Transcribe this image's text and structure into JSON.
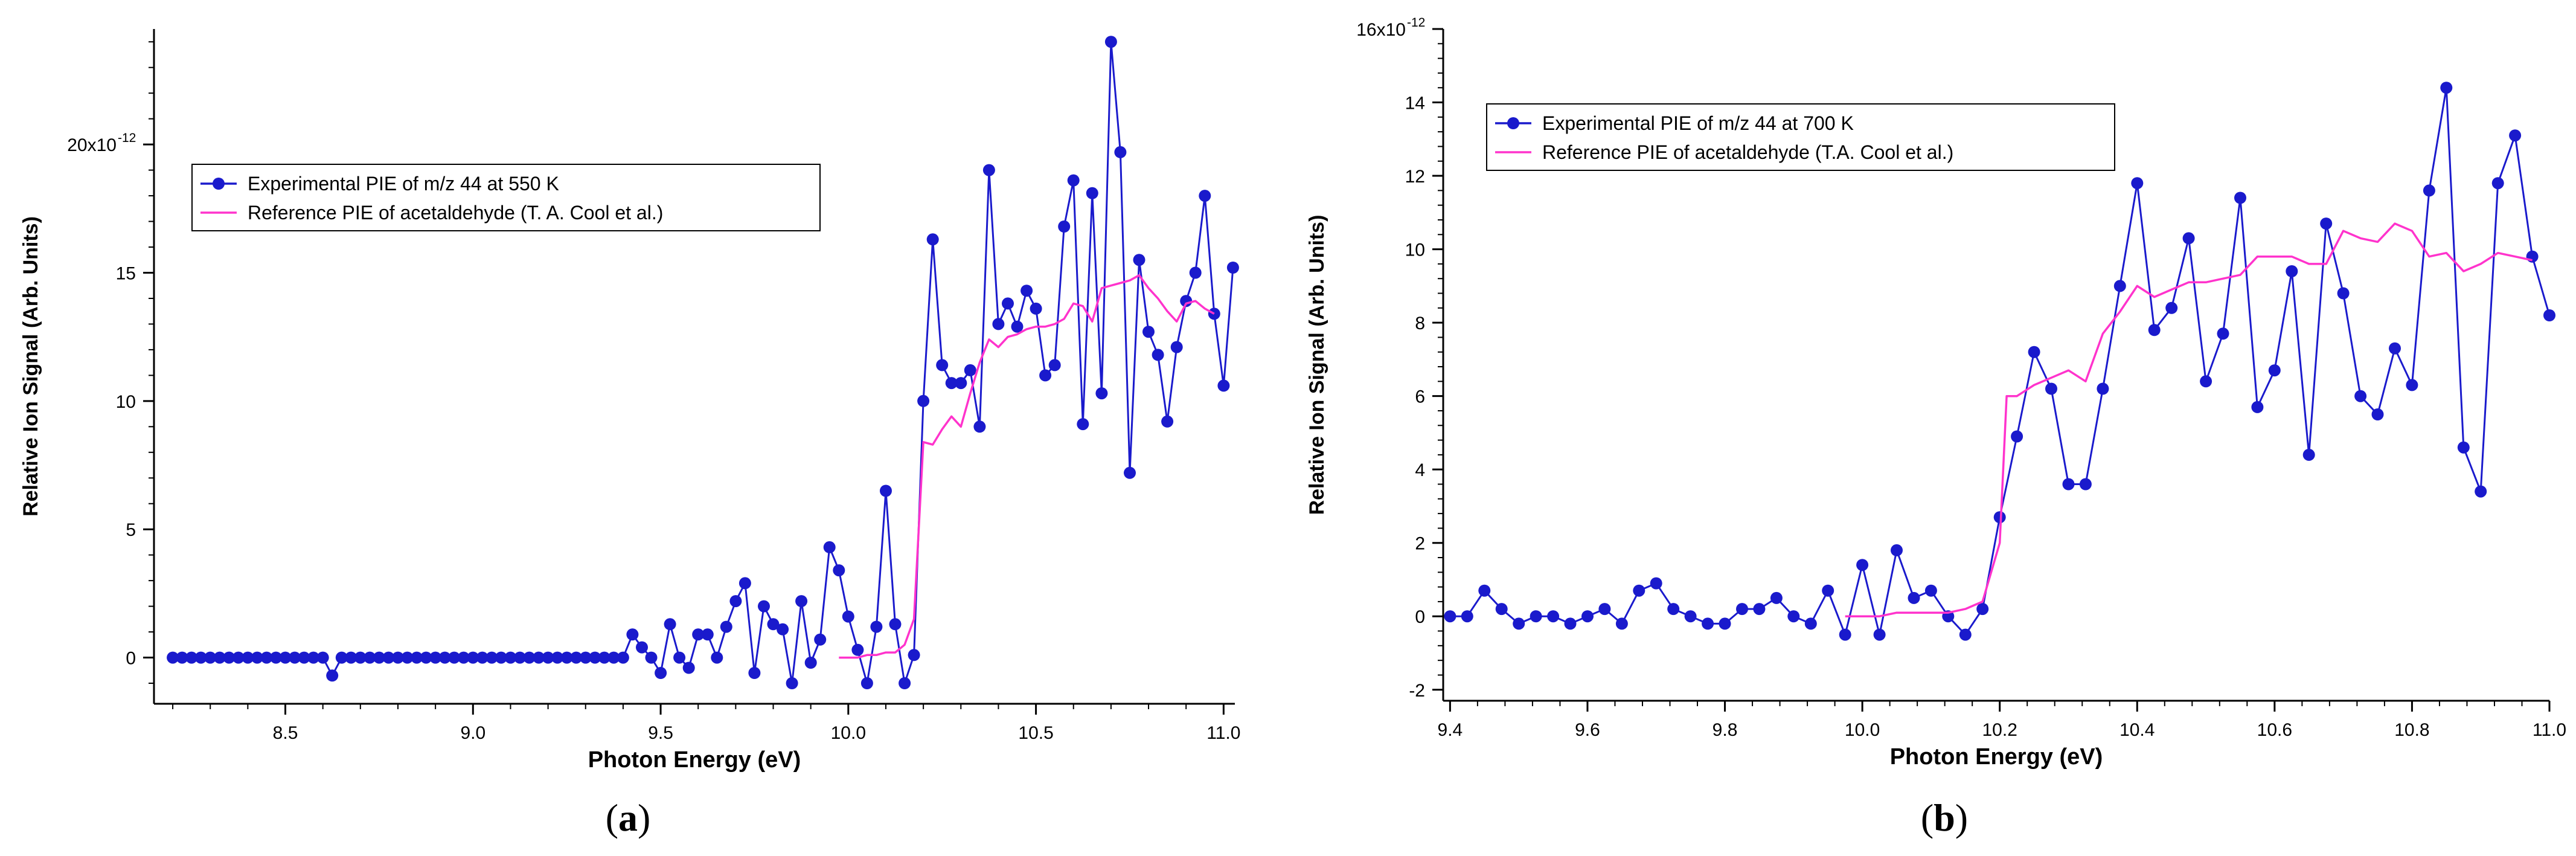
{
  "chart_data": [
    {
      "type": "line",
      "panel_label_prefix": "(",
      "panel_label_letter": "a",
      "panel_label_suffix": ")",
      "title": "",
      "xlabel": "Photon Energy (eV)",
      "ylabel": "Relative Ion Signal (Arb. Units)",
      "xlim": [
        8.15,
        11.03
      ],
      "ylim": [
        -1.8,
        24.5
      ],
      "x_ticks": [
        8.5,
        9.0,
        9.5,
        10.0,
        10.5,
        11.0
      ],
      "x_tick_labels": [
        "8.5",
        "9.0",
        "9.5",
        "10.0",
        "10.5",
        "11.0"
      ],
      "y_ticks": [
        0,
        5,
        10,
        15,
        20
      ],
      "y_tick_labels": [
        "0",
        "5",
        "10",
        "15",
        "20x10"
      ],
      "y_exponent": "-12",
      "legend_position": "top-left",
      "series": [
        {
          "name": "Experimental PIE of m/z 44 at 550 K",
          "color": "#1a1acc",
          "marker": "circle",
          "x": [
            8.2,
            8.225,
            8.25,
            8.275,
            8.3,
            8.325,
            8.35,
            8.375,
            8.4,
            8.425,
            8.45,
            8.475,
            8.5,
            8.525,
            8.55,
            8.575,
            8.6,
            8.625,
            8.65,
            8.675,
            8.7,
            8.725,
            8.75,
            8.775,
            8.8,
            8.825,
            8.85,
            8.875,
            8.9,
            8.925,
            8.95,
            8.975,
            9.0,
            9.025,
            9.05,
            9.075,
            9.1,
            9.125,
            9.15,
            9.175,
            9.2,
            9.225,
            9.25,
            9.275,
            9.3,
            9.325,
            9.35,
            9.375,
            9.4,
            9.425,
            9.45,
            9.475,
            9.5,
            9.525,
            9.55,
            9.575,
            9.6,
            9.625,
            9.65,
            9.675,
            9.7,
            9.725,
            9.75,
            9.775,
            9.8,
            9.825,
            9.85,
            9.875,
            9.9,
            9.925,
            9.95,
            9.975,
            10.0,
            10.025,
            10.05,
            10.075,
            10.1,
            10.125,
            10.15,
            10.175,
            10.2,
            10.225,
            10.25,
            10.275,
            10.3,
            10.325,
            10.35,
            10.375,
            10.4,
            10.425,
            10.45,
            10.475,
            10.5,
            10.525,
            10.55,
            10.575,
            10.6,
            10.625,
            10.65,
            10.675,
            10.7,
            10.725,
            10.75,
            10.775,
            10.8,
            10.825,
            10.85,
            10.875,
            10.9,
            10.925,
            10.95,
            10.975,
            11.0,
            11.025
          ],
          "y": [
            0,
            0,
            0,
            0,
            0,
            0,
            0,
            0,
            0,
            0,
            0,
            0,
            0,
            0,
            0,
            0,
            0,
            -0.7,
            0,
            0,
            0,
            0,
            0,
            0,
            0,
            0,
            0,
            0,
            0,
            0,
            0,
            0,
            0,
            0,
            0,
            0,
            0,
            0,
            0,
            0,
            0,
            0,
            0,
            0,
            0,
            0,
            0,
            0,
            0,
            0.9,
            0.4,
            0,
            -0.6,
            1.3,
            0,
            -0.4,
            0.9,
            0.9,
            0,
            1.2,
            2.2,
            2.9,
            -0.6,
            2.0,
            1.3,
            1.1,
            -1.0,
            2.2,
            -0.2,
            0.7,
            4.3,
            3.4,
            1.6,
            0.3,
            -1.0,
            1.2,
            6.5,
            1.3,
            -1.0,
            0.1,
            10.0,
            16.3,
            11.4,
            10.7,
            10.7,
            11.2,
            9.0,
            19.0,
            13.0,
            13.8,
            12.9,
            14.3,
            13.6,
            11.0,
            11.4,
            16.8,
            18.6,
            9.1,
            18.1,
            10.3,
            24.0,
            19.7,
            7.2,
            15.5,
            12.7,
            11.8,
            9.2,
            12.1,
            13.9,
            15.0,
            18.0,
            13.4,
            10.6,
            15.2
          ]
        },
        {
          "name": "Reference PIE of acetaldehyde (T. A. Cool et al.)",
          "color": "#ff33cc",
          "marker": "none",
          "x": [
            9.975,
            10.0,
            10.025,
            10.05,
            10.075,
            10.1,
            10.125,
            10.15,
            10.175,
            10.2,
            10.225,
            10.25,
            10.275,
            10.3,
            10.325,
            10.35,
            10.375,
            10.4,
            10.425,
            10.45,
            10.475,
            10.5,
            10.525,
            10.55,
            10.575,
            10.6,
            10.625,
            10.65,
            10.675,
            10.7,
            10.725,
            10.75,
            10.775,
            10.8,
            10.825,
            10.85,
            10.875,
            10.9,
            10.925,
            10.95,
            10.975
          ],
          "y": [
            0,
            0,
            0,
            0.1,
            0.1,
            0.2,
            0.2,
            0.5,
            1.5,
            8.4,
            8.3,
            8.9,
            9.4,
            9.0,
            10.3,
            11.5,
            12.4,
            12.1,
            12.5,
            12.6,
            12.8,
            12.9,
            12.9,
            13.0,
            13.2,
            13.8,
            13.7,
            13.1,
            14.4,
            14.5,
            14.6,
            14.7,
            14.9,
            14.4,
            14.0,
            13.5,
            13.1,
            13.8,
            13.9,
            13.6,
            13.4
          ]
        }
      ]
    },
    {
      "type": "line",
      "panel_label_prefix": "(",
      "panel_label_letter": "b",
      "panel_label_suffix": ")",
      "title": "",
      "xlabel": "Photon Energy (eV)",
      "ylabel": "Relative Ion Signal (Arb. Units)",
      "xlim": [
        9.39,
        11.0
      ],
      "ylim": [
        -2.3,
        16.0
      ],
      "x_ticks": [
        9.4,
        9.6,
        9.8,
        10.0,
        10.2,
        10.4,
        10.6,
        10.8,
        11.0
      ],
      "x_tick_labels": [
        "9.4",
        "9.6",
        "9.8",
        "10.0",
        "10.2",
        "10.4",
        "10.6",
        "10.8",
        "11.0"
      ],
      "y_ticks": [
        -2,
        0,
        2,
        4,
        6,
        8,
        10,
        12,
        14,
        16
      ],
      "y_tick_labels": [
        "-2",
        "0",
        "2",
        "4",
        "6",
        "8",
        "10",
        "12",
        "14",
        "16x10"
      ],
      "y_exponent": "-12",
      "legend_position": "top-left",
      "series": [
        {
          "name": "Experimental PIE of m/z 44 at 700 K",
          "color": "#1a1acc",
          "marker": "circle",
          "x": [
            9.4,
            9.425,
            9.45,
            9.475,
            9.5,
            9.525,
            9.55,
            9.575,
            9.6,
            9.625,
            9.65,
            9.675,
            9.7,
            9.725,
            9.75,
            9.775,
            9.8,
            9.825,
            9.85,
            9.875,
            9.9,
            9.925,
            9.95,
            9.975,
            10.0,
            10.025,
            10.05,
            10.075,
            10.1,
            10.125,
            10.15,
            10.175,
            10.2,
            10.225,
            10.25,
            10.275,
            10.3,
            10.325,
            10.35,
            10.375,
            10.4,
            10.425,
            10.45,
            10.475,
            10.5,
            10.525,
            10.55,
            10.575,
            10.6,
            10.625,
            10.65,
            10.675,
            10.7,
            10.725,
            10.75,
            10.775,
            10.8,
            10.825,
            10.85,
            10.875,
            10.9,
            10.925,
            10.95,
            10.975,
            11.0
          ],
          "y": [
            0,
            0,
            0.7,
            0.2,
            -0.2,
            0,
            0,
            -0.2,
            0,
            0.2,
            -0.2,
            0.7,
            0.9,
            0.2,
            0,
            -0.2,
            -0.2,
            0.2,
            0.2,
            0.5,
            0,
            -0.2,
            0.7,
            -0.5,
            1.4,
            -0.5,
            1.8,
            0.5,
            0.7,
            0,
            -0.5,
            0.2,
            2.7,
            4.9,
            7.2,
            6.2,
            3.6,
            3.6,
            6.2,
            9.0,
            11.8,
            7.8,
            8.4,
            10.3,
            6.4,
            7.7,
            11.4,
            5.7,
            6.7,
            9.4,
            4.4,
            10.7,
            8.8,
            6.0,
            5.5,
            7.3,
            6.3,
            11.6,
            14.4,
            4.6,
            3.4,
            11.8,
            13.1,
            9.8,
            8.2
          ]
        },
        {
          "name": "Reference PIE of acetaldehyde (T.A. Cool et al.)",
          "color": "#ff33cc",
          "marker": "none",
          "x": [
            9.975,
            10.0,
            10.025,
            10.05,
            10.075,
            10.1,
            10.125,
            10.15,
            10.175,
            10.2,
            10.21,
            10.225,
            10.25,
            10.275,
            10.3,
            10.325,
            10.35,
            10.375,
            10.4,
            10.425,
            10.45,
            10.475,
            10.5,
            10.525,
            10.55,
            10.575,
            10.6,
            10.625,
            10.65,
            10.675,
            10.7,
            10.725,
            10.75,
            10.775,
            10.8,
            10.825,
            10.85,
            10.875,
            10.9,
            10.925,
            10.95,
            10.975
          ],
          "y": [
            0,
            0,
            0,
            0.1,
            0.1,
            0.1,
            0.1,
            0.2,
            0.4,
            2.0,
            6.0,
            6.0,
            6.3,
            6.5,
            6.7,
            6.4,
            7.7,
            8.3,
            9.0,
            8.7,
            8.9,
            9.1,
            9.1,
            9.2,
            9.3,
            9.8,
            9.8,
            9.8,
            9.6,
            9.6,
            10.5,
            10.3,
            10.2,
            10.7,
            10.5,
            9.8,
            9.9,
            9.4,
            9.6,
            9.9,
            9.8,
            9.7
          ]
        }
      ]
    }
  ]
}
